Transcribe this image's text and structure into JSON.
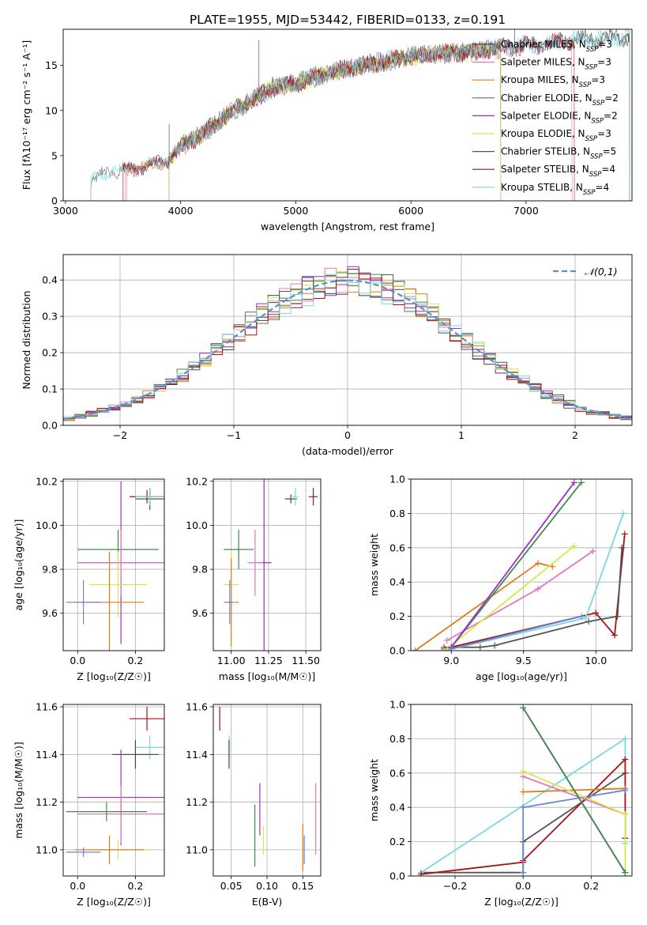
{
  "figure": {
    "title": "PLATE=1955, MJD=53442, FIBERID=0133, z=0.191"
  },
  "chart_data": [
    {
      "id": "spectrum",
      "type": "line",
      "title": "PLATE=1955, MJD=53442, FIBERID=0133, z=0.191",
      "xlabel": "wavelength [Angstrom, rest frame]",
      "ylabel": "Flux [fλ10⁻¹⁷ erg cm⁻² s⁻¹ A⁻¹]",
      "xlim": [
        2980,
        7920
      ],
      "ylim": [
        0,
        19
      ],
      "xticks": [
        3000,
        4000,
        5000,
        6000,
        7000
      ],
      "yticks": [
        0,
        5,
        10,
        15
      ],
      "grid": false,
      "legend_position": "right",
      "continuum_points": [
        [
          3220,
          2.3
        ],
        [
          3400,
          3.3
        ],
        [
          3600,
          3.5
        ],
        [
          3900,
          4.5
        ],
        [
          4000,
          6.0
        ],
        [
          4200,
          7.5
        ],
        [
          4400,
          9.5
        ],
        [
          4600,
          11.0
        ],
        [
          4800,
          12.5
        ],
        [
          5000,
          13.0
        ],
        [
          5200,
          13.8
        ],
        [
          5400,
          14.5
        ],
        [
          5600,
          15.0
        ],
        [
          5800,
          15.5
        ],
        [
          6000,
          16.0
        ],
        [
          6200,
          16.2
        ],
        [
          6400,
          16.4
        ],
        [
          6600,
          16.6
        ],
        [
          6800,
          16.9
        ],
        [
          7000,
          17.2
        ],
        [
          7200,
          17.4
        ],
        [
          7400,
          17.8
        ],
        [
          7600,
          18.0
        ],
        [
          7900,
          18.1
        ]
      ],
      "series": [
        {
          "name": "Chabrier MILES, N_SSP=3",
          "color": "#444444",
          "start": 3500,
          "end": 7900
        },
        {
          "name": "Salpeter MILES, N_SSP=3",
          "color": "#e377c2",
          "start": 3520,
          "end": 7400
        },
        {
          "name": "Kroupa MILES, N_SSP=3",
          "color": "#e07b1c",
          "start": 3530,
          "end": 6780
        },
        {
          "name": "Chabrier ELODIE, N_SSP=2",
          "color": "#3c8c47",
          "start": 3900,
          "end": 6780
        },
        {
          "name": "Salpeter ELODIE, N_SSP=2",
          "color": "#9b30c8",
          "start": 3900,
          "end": 6780
        },
        {
          "name": "Kroupa ELODIE, N_SSP=3",
          "color": "#d4e84a",
          "start": 3900,
          "end": 6780
        },
        {
          "name": "Chabrier STELIB, N_SSP=5",
          "color": "#555555",
          "start": 3220,
          "end": 7900
        },
        {
          "name": "Salpeter STELIB, N_SSP=4",
          "color": "#a51414",
          "start": 3500,
          "end": 7420
        },
        {
          "name": "Kroupa STELIB, N_SSP=4",
          "color": "#7ad8e0",
          "start": 3220,
          "end": 7900
        }
      ],
      "legend": [
        {
          "label": "Chabrier MILES, N",
          "sub": "SSP",
          "suffix": "=3",
          "color": "#444444"
        },
        {
          "label": "Salpeter MILES, N",
          "sub": "SSP",
          "suffix": "=3",
          "color": "#e377c2"
        },
        {
          "label": "Kroupa MILES, N",
          "sub": "SSP",
          "suffix": "=3",
          "color": "#e07b1c"
        },
        {
          "label": "Chabrier ELODIE, N",
          "sub": "SSP",
          "suffix": "=2",
          "color": "#3c8c47"
        },
        {
          "label": "Salpeter ELODIE, N",
          "sub": "SSP",
          "suffix": "=2",
          "color": "#9b30c8"
        },
        {
          "label": "Kroupa ELODIE, N",
          "sub": "SSP",
          "suffix": "=3",
          "color": "#d4e84a"
        },
        {
          "label": "Chabrier STELIB, N",
          "sub": "SSP",
          "suffix": "=5",
          "color": "#555555"
        },
        {
          "label": "Salpeter STELIB, N",
          "sub": "SSP",
          "suffix": "=4",
          "color": "#a51414"
        },
        {
          "label": "Kroupa STELIB, N",
          "sub": "SSP",
          "suffix": "=4",
          "color": "#7ad8e0"
        }
      ]
    },
    {
      "id": "residuals",
      "type": "histogram",
      "xlabel": "(data-model)/error",
      "ylabel": "Normed distribution",
      "xlim": [
        -2.5,
        2.5
      ],
      "ylim": [
        0,
        0.47
      ],
      "xticks": [
        -2,
        -1,
        0,
        1,
        2
      ],
      "yticks": [
        0.0,
        0.1,
        0.2,
        0.3,
        0.4
      ],
      "grid": true,
      "legend_position": "top-right",
      "bin_width": 0.1,
      "reference": {
        "name": "𝒩(0,1)",
        "color": "#5a8fd6",
        "style": "dashed"
      }
    },
    {
      "id": "age-vs-Z",
      "type": "errorbar",
      "xlabel": "Z [log₁₀(Z/Z☉)]",
      "ylabel": "age  [log₁₀(age/yr)]",
      "xlim": [
        -0.05,
        0.3
      ],
      "ylim": [
        9.43,
        10.21
      ],
      "xticks": [
        0.0,
        0.2
      ],
      "yticks": [
        9.6,
        9.8,
        10.0,
        10.2
      ],
      "grid": true,
      "points": [
        {
          "color": "#444444",
          "x": 0.25,
          "xerr": 0.05,
          "y": 10.12,
          "yerr": 0.05
        },
        {
          "color": "#a51414",
          "x": 0.24,
          "xerr": 0.06,
          "y": 10.13,
          "yerr": 0.03
        },
        {
          "color": "#7ad8e0",
          "x": 0.25,
          "xerr": 0.05,
          "y": 10.13,
          "yerr": 0.04
        },
        {
          "color": "#3c8c47",
          "x": 0.14,
          "xerr": 0.14,
          "y": 9.89,
          "yerr": 0.09
        },
        {
          "color": "#9b30c8",
          "x": 0.15,
          "xerr": 0.15,
          "y": 9.83,
          "yerr": 0.37
        },
        {
          "color": "#e377c2",
          "x": 0.15,
          "xerr": 0.15,
          "y": 9.83,
          "yerr": 0.15
        },
        {
          "color": "#d4e84a",
          "x": 0.14,
          "xerr": 0.1,
          "y": 9.73,
          "yerr": 0.15
        },
        {
          "color": "#e07b1c",
          "x": 0.11,
          "xerr": 0.12,
          "y": 9.65,
          "yerr": 0.23
        },
        {
          "color": "#6a85d6",
          "x": 0.02,
          "xerr": 0.06,
          "y": 9.65,
          "yerr": 0.1
        }
      ]
    },
    {
      "id": "age-vs-mass",
      "type": "errorbar",
      "xlabel": "mass [log₁₀(M/M☉)]",
      "ylabel": "",
      "xlim": [
        10.88,
        11.6
      ],
      "ylim": [
        9.43,
        10.21
      ],
      "xticks": [
        11.0,
        11.25,
        11.5
      ],
      "yticks": [
        9.6,
        9.8,
        10.0,
        10.2
      ],
      "grid": true,
      "points": [
        {
          "color": "#444444",
          "x": 11.4,
          "xerr": 0.04,
          "y": 10.12,
          "yerr": 0.02
        },
        {
          "color": "#7ad8e0",
          "x": 11.43,
          "xerr": 0.02,
          "y": 10.13,
          "yerr": 0.04
        },
        {
          "color": "#a51414",
          "x": 11.55,
          "xerr": 0.03,
          "y": 10.13,
          "yerr": 0.04
        },
        {
          "color": "#3c8c47",
          "x": 11.05,
          "xerr": 0.1,
          "y": 9.89,
          "yerr": 0.09
        },
        {
          "color": "#9b30c8",
          "x": 11.22,
          "xerr": 0.05,
          "y": 9.83,
          "yerr": 0.4
        },
        {
          "color": "#e377c2",
          "x": 11.16,
          "xerr": 0.05,
          "y": 9.83,
          "yerr": 0.15
        },
        {
          "color": "#d4e84a",
          "x": 11.0,
          "xerr": 0.05,
          "y": 9.73,
          "yerr": 0.15
        },
        {
          "color": "#e07b1c",
          "x": 11.0,
          "xerr": 0.05,
          "y": 9.65,
          "yerr": 0.2
        },
        {
          "color": "#6a85d6",
          "x": 10.99,
          "xerr": 0.02,
          "y": 9.65,
          "yerr": 0.1
        }
      ]
    },
    {
      "id": "weight-vs-age",
      "type": "line",
      "xlabel": "age  [log₁₀(age/yr)]",
      "ylabel": "mass weight",
      "xlim": [
        8.72,
        10.25
      ],
      "ylim": [
        0,
        1
      ],
      "xticks": [
        9.0,
        9.5,
        10.0
      ],
      "yticks": [
        0.0,
        0.2,
        0.4,
        0.6,
        0.8,
        1.0
      ],
      "grid": true,
      "series": [
        {
          "color": "#e07b1c",
          "x": [
            8.75,
            9.6,
            9.7
          ],
          "y": [
            0.0,
            0.51,
            0.49
          ]
        },
        {
          "color": "#a51414",
          "x": [
            8.95,
            10.0,
            10.13,
            10.2
          ],
          "y": [
            0.01,
            0.22,
            0.09,
            0.68
          ]
        },
        {
          "color": "#555555",
          "x": [
            8.95,
            9.2,
            9.3,
            9.95,
            10.15,
            10.18
          ],
          "y": [
            0.02,
            0.02,
            0.03,
            0.17,
            0.2,
            0.6
          ]
        },
        {
          "color": "#7ad8e0",
          "x": [
            8.95,
            9.93,
            10.19
          ],
          "y": [
            0.0,
            0.19,
            0.8
          ]
        },
        {
          "color": "#e377c2",
          "x": [
            8.97,
            9.6,
            9.98
          ],
          "y": [
            0.06,
            0.36,
            0.58
          ]
        },
        {
          "color": "#d4e84a",
          "x": [
            8.97,
            9.85
          ],
          "y": [
            0.01,
            0.61
          ]
        },
        {
          "color": "#3c8c47",
          "x": [
            9.0,
            9.9
          ],
          "y": [
            0.02,
            0.98
          ]
        },
        {
          "color": "#9b30c8",
          "x": [
            9.0,
            9.85
          ],
          "y": [
            0.02,
            0.98
          ]
        },
        {
          "color": "#6a85d6",
          "x": [
            9.0,
            9.9
          ],
          "y": [
            0.01,
            0.2
          ]
        }
      ]
    },
    {
      "id": "mass-vs-Z",
      "type": "errorbar",
      "xlabel": "Z [log₁₀(Z/Z☉)]",
      "ylabel": "mass [log₁₀(M/M☉)]",
      "xlim": [
        -0.05,
        0.3
      ],
      "ylim": [
        10.89,
        11.61
      ],
      "xticks": [
        0.0,
        0.2
      ],
      "yticks": [
        11.0,
        11.2,
        11.4,
        11.6
      ],
      "grid": true,
      "points": [
        {
          "color": "#a51414",
          "x": 0.24,
          "xerr": 0.06,
          "y": 11.55,
          "yerr": 0.05
        },
        {
          "color": "#7ad8e0",
          "x": 0.25,
          "xerr": 0.05,
          "y": 11.43,
          "yerr": 0.05
        },
        {
          "color": "#444444",
          "x": 0.2,
          "xerr": 0.08,
          "y": 11.4,
          "yerr": 0.06
        },
        {
          "color": "#9b30c8",
          "x": 0.15,
          "xerr": 0.15,
          "y": 11.22,
          "yerr": 0.2
        },
        {
          "color": "#e377c2",
          "x": 0.15,
          "xerr": 0.15,
          "y": 11.15,
          "yerr": 0.12
        },
        {
          "color": "#3c8c47",
          "x": 0.1,
          "xerr": 0.14,
          "y": 11.16,
          "yerr": 0.04
        },
        {
          "color": "#d4e84a",
          "x": 0.14,
          "xerr": 0.1,
          "y": 11.0,
          "yerr": 0.04
        },
        {
          "color": "#e07b1c",
          "x": 0.11,
          "xerr": 0.12,
          "y": 11.0,
          "yerr": 0.06
        },
        {
          "color": "#6a85d6",
          "x": 0.02,
          "xerr": 0.06,
          "y": 10.99,
          "yerr": 0.02
        }
      ]
    },
    {
      "id": "mass-vs-ebv",
      "type": "errorbar",
      "xlabel": "E(B-V)",
      "ylabel": "",
      "xlim": [
        0.025,
        0.175
      ],
      "ylim": [
        10.89,
        11.61
      ],
      "xticks": [
        0.05,
        0.1,
        0.15
      ],
      "yticks": [
        11.0,
        11.2,
        11.4,
        11.6
      ],
      "grid": true,
      "points": [
        {
          "color": "#a51414",
          "x": 0.034,
          "y": 11.55,
          "yerr": 0.05
        },
        {
          "color": "#7ad8e0",
          "x": 0.047,
          "y": 11.43,
          "yerr": 0.05
        },
        {
          "color": "#444444",
          "x": 0.047,
          "y": 11.4,
          "yerr": 0.06
        },
        {
          "color": "#3c8c47",
          "x": 0.083,
          "y": 11.06,
          "yerr": 0.13
        },
        {
          "color": "#9b30c8",
          "x": 0.09,
          "y": 11.17,
          "yerr": 0.11
        },
        {
          "color": "#d4e84a",
          "x": 0.095,
          "y": 11.04,
          "yerr": 0.06
        },
        {
          "color": "#e07b1c",
          "x": 0.15,
          "y": 11.01,
          "yerr": 0.1
        },
        {
          "color": "#6a85d6",
          "x": 0.152,
          "y": 11.0,
          "yerr": 0.06
        },
        {
          "color": "#e377c2",
          "x": 0.168,
          "y": 11.13,
          "yerr": 0.15
        }
      ]
    },
    {
      "id": "weight-vs-Z",
      "type": "line",
      "xlabel": "Z [log₁₀(Z/Z☉)]",
      "ylabel": "mass weight",
      "xlim": [
        -0.33,
        0.32
      ],
      "ylim": [
        0,
        1
      ],
      "xticks": [
        -0.2,
        0.0,
        0.2
      ],
      "yticks": [
        0.0,
        0.2,
        0.4,
        0.6,
        0.8,
        1.0
      ],
      "grid": true,
      "series": [
        {
          "color": "#555555",
          "x": [
            -0.3,
            0.0,
            0.0,
            0.3,
            0.3
          ],
          "y": [
            0.02,
            0.02,
            0.2,
            0.6,
            0.6
          ]
        },
        {
          "color": "#7ad8e0",
          "x": [
            -0.3,
            0.3,
            0.3
          ],
          "y": [
            0.02,
            0.8,
            0.19
          ]
        },
        {
          "color": "#a51414",
          "x": [
            -0.3,
            0.0,
            0.0,
            0.3,
            0.3
          ],
          "y": [
            0.01,
            0.08,
            0.09,
            0.68,
            0.22
          ]
        },
        {
          "color": "#e07b1c",
          "x": [
            0.0,
            0.3
          ],
          "y": [
            0.49,
            0.51
          ]
        },
        {
          "color": "#6a85d6",
          "x": [
            0.0,
            0.0,
            0.3
          ],
          "y": [
            0.02,
            0.4,
            0.5
          ]
        },
        {
          "color": "#e377c2",
          "x": [
            0.0,
            0.3
          ],
          "y": [
            0.58,
            0.36
          ]
        },
        {
          "color": "#d4e84a",
          "x": [
            0.0,
            0.3,
            0.3
          ],
          "y": [
            0.61,
            0.36,
            0.02
          ]
        },
        {
          "color": "#9b30c8",
          "x": [
            0.0,
            0.3
          ],
          "y": [
            0.98,
            0.02
          ]
        },
        {
          "color": "#3c8c47",
          "x": [
            0.0,
            0.3
          ],
          "y": [
            0.98,
            0.02
          ]
        }
      ]
    }
  ]
}
